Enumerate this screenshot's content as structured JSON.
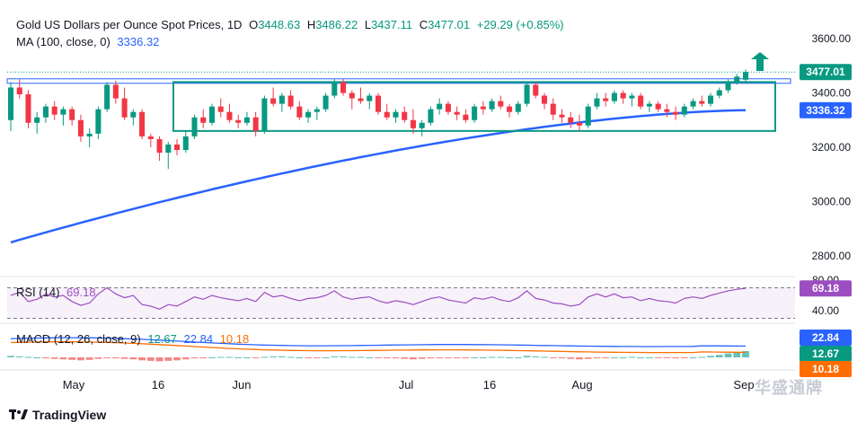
{
  "legend": {
    "title": "Gold US Dollars per Ounce Spot Prices, 1D",
    "open_label": "O",
    "open": "3448.63",
    "high_label": "H",
    "high": "3486.22",
    "low_label": "L",
    "low": "3437.11",
    "close_label": "C",
    "close": "3477.01",
    "change": "+29.29 (+0.85%)",
    "ma_label": "MA (100, close, 0)",
    "ma_value": "3336.32",
    "rsi_label": "RSI (14)",
    "rsi_value": "69.18",
    "macd_label": "MACD (12, 26, close, 9)",
    "macd_hist": "12.67",
    "macd_line": "22.84",
    "macd_signal": "10.18"
  },
  "brand": "TradingView",
  "watermark": "华盛通牌",
  "colors": {
    "up": "#089981",
    "down": "#f23645",
    "ma": "#2962ff",
    "rsi": "#9c4ec0",
    "macd": "#2962ff",
    "signal": "#ff6d00",
    "box": "#089981"
  },
  "chart_data": {
    "type": "candlestick",
    "y_ticks": [
      "3600.00",
      "3400.00",
      "3200.00",
      "3000.00",
      "2800.00"
    ],
    "x_ticks": [
      "May",
      "16",
      "Jun",
      "Jul",
      "16",
      "Aug",
      "Sep"
    ],
    "price_badge": "3477.01",
    "ma_badge": "3336.32",
    "rsi_ticks": [
      "80.00",
      "40.00"
    ],
    "rsi_badge": "69.18",
    "macd_badges": [
      "22.84",
      "12.67",
      "10.18"
    ],
    "ohlc": [
      [
        3300,
        3440,
        3260,
        3420
      ],
      [
        3420,
        3450,
        3380,
        3395
      ],
      [
        3395,
        3410,
        3270,
        3290
      ],
      [
        3290,
        3330,
        3250,
        3310
      ],
      [
        3310,
        3360,
        3290,
        3350
      ],
      [
        3350,
        3370,
        3300,
        3320
      ],
      [
        3320,
        3350,
        3280,
        3340
      ],
      [
        3340,
        3350,
        3280,
        3300
      ],
      [
        3300,
        3320,
        3220,
        3240
      ],
      [
        3240,
        3270,
        3200,
        3250
      ],
      [
        3250,
        3350,
        3230,
        3340
      ],
      [
        3340,
        3440,
        3330,
        3430
      ],
      [
        3430,
        3445,
        3360,
        3380
      ],
      [
        3380,
        3420,
        3300,
        3310
      ],
      [
        3310,
        3340,
        3280,
        3330
      ],
      [
        3330,
        3340,
        3230,
        3240
      ],
      [
        3240,
        3250,
        3200,
        3230
      ],
      [
        3230,
        3240,
        3150,
        3180
      ],
      [
        3180,
        3220,
        3120,
        3210
      ],
      [
        3210,
        3230,
        3170,
        3190
      ],
      [
        3190,
        3260,
        3180,
        3240
      ],
      [
        3240,
        3320,
        3230,
        3310
      ],
      [
        3310,
        3340,
        3270,
        3290
      ],
      [
        3290,
        3360,
        3280,
        3350
      ],
      [
        3350,
        3380,
        3310,
        3330
      ],
      [
        3330,
        3360,
        3290,
        3300
      ],
      [
        3300,
        3320,
        3270,
        3290
      ],
      [
        3290,
        3330,
        3280,
        3310
      ],
      [
        3310,
        3330,
        3240,
        3260
      ],
      [
        3260,
        3390,
        3250,
        3380
      ],
      [
        3380,
        3420,
        3350,
        3360
      ],
      [
        3360,
        3400,
        3330,
        3390
      ],
      [
        3390,
        3410,
        3340,
        3350
      ],
      [
        3350,
        3370,
        3300,
        3310
      ],
      [
        3310,
        3340,
        3290,
        3330
      ],
      [
        3330,
        3350,
        3300,
        3340
      ],
      [
        3340,
        3400,
        3330,
        3390
      ],
      [
        3390,
        3450,
        3380,
        3440
      ],
      [
        3440,
        3452,
        3390,
        3400
      ],
      [
        3400,
        3410,
        3340,
        3380
      ],
      [
        3380,
        3420,
        3360,
        3370
      ],
      [
        3370,
        3400,
        3340,
        3390
      ],
      [
        3390,
        3400,
        3320,
        3330
      ],
      [
        3330,
        3360,
        3300,
        3310
      ],
      [
        3310,
        3340,
        3290,
        3330
      ],
      [
        3330,
        3350,
        3290,
        3300
      ],
      [
        3300,
        3340,
        3250,
        3270
      ],
      [
        3270,
        3300,
        3240,
        3290
      ],
      [
        3290,
        3350,
        3280,
        3340
      ],
      [
        3340,
        3380,
        3320,
        3360
      ],
      [
        3360,
        3370,
        3320,
        3330
      ],
      [
        3330,
        3350,
        3300,
        3320
      ],
      [
        3320,
        3340,
        3290,
        3300
      ],
      [
        3300,
        3360,
        3290,
        3350
      ],
      [
        3350,
        3370,
        3320,
        3340
      ],
      [
        3340,
        3380,
        3330,
        3370
      ],
      [
        3370,
        3390,
        3340,
        3350
      ],
      [
        3350,
        3360,
        3310,
        3330
      ],
      [
        3330,
        3370,
        3320,
        3360
      ],
      [
        3360,
        3440,
        3350,
        3430
      ],
      [
        3430,
        3440,
        3380,
        3390
      ],
      [
        3390,
        3400,
        3340,
        3360
      ],
      [
        3360,
        3380,
        3300,
        3320
      ],
      [
        3320,
        3340,
        3290,
        3310
      ],
      [
        3310,
        3330,
        3270,
        3290
      ],
      [
        3290,
        3320,
        3260,
        3280
      ],
      [
        3280,
        3360,
        3270,
        3350
      ],
      [
        3350,
        3400,
        3340,
        3380
      ],
      [
        3380,
        3400,
        3350,
        3370
      ],
      [
        3370,
        3410,
        3360,
        3400
      ],
      [
        3400,
        3410,
        3360,
        3380
      ],
      [
        3380,
        3400,
        3350,
        3390
      ],
      [
        3390,
        3400,
        3340,
        3350
      ],
      [
        3350,
        3370,
        3330,
        3360
      ],
      [
        3360,
        3370,
        3330,
        3340
      ],
      [
        3340,
        3360,
        3310,
        3330
      ],
      [
        3330,
        3350,
        3300,
        3320
      ],
      [
        3320,
        3360,
        3310,
        3350
      ],
      [
        3350,
        3380,
        3340,
        3370
      ],
      [
        3370,
        3390,
        3350,
        3360
      ],
      [
        3360,
        3400,
        3350,
        3390
      ],
      [
        3390,
        3420,
        3380,
        3410
      ],
      [
        3410,
        3450,
        3400,
        3440
      ],
      [
        3440,
        3470,
        3430,
        3460
      ],
      [
        3448.63,
        3486.22,
        3437.11,
        3477.01
      ]
    ],
    "ma": {
      "start": 2850,
      "end": 3336.32
    },
    "rsi": [
      60,
      64,
      52,
      55,
      62,
      58,
      60,
      52,
      47,
      50,
      62,
      70,
      62,
      57,
      60,
      48,
      46,
      42,
      48,
      46,
      52,
      58,
      55,
      60,
      57,
      55,
      53,
      56,
      52,
      64,
      58,
      60,
      56,
      53,
      56,
      57,
      60,
      66,
      58,
      55,
      57,
      58,
      53,
      50,
      53,
      51,
      48,
      52,
      56,
      58,
      54,
      52,
      50,
      57,
      55,
      58,
      54,
      52,
      57,
      66,
      56,
      54,
      50,
      49,
      46,
      48,
      58,
      62,
      58,
      62,
      57,
      58,
      53,
      56,
      53,
      52,
      50,
      56,
      58,
      56,
      60,
      63,
      66,
      68,
      69.18
    ],
    "macd_hist": [
      3,
      2,
      1,
      0,
      -2,
      -3,
      -4,
      -5,
      -6,
      -5,
      -3,
      -1,
      -2,
      -3,
      -4,
      -6,
      -7,
      -8,
      -7,
      -6,
      -4,
      -2,
      -1,
      0,
      1,
      1,
      0,
      0,
      -1,
      1,
      2,
      2,
      1,
      0,
      -1,
      -1,
      0,
      2,
      2,
      1,
      1,
      0,
      -1,
      -2,
      -2,
      -3,
      -4,
      -3,
      -2,
      -1,
      -1,
      -1,
      -1,
      0,
      0,
      1,
      1,
      0,
      0,
      3,
      2,
      1,
      -1,
      -2,
      -3,
      -4,
      -3,
      -2,
      -1,
      0,
      0,
      1,
      0,
      0,
      -1,
      -1,
      -2,
      -1,
      0,
      1,
      3,
      5,
      8,
      10,
      12.67
    ],
    "macd_line": {
      "start": 38,
      "end": 22.84
    },
    "signal_line": {
      "start": 30,
      "end": 10.18
    }
  }
}
